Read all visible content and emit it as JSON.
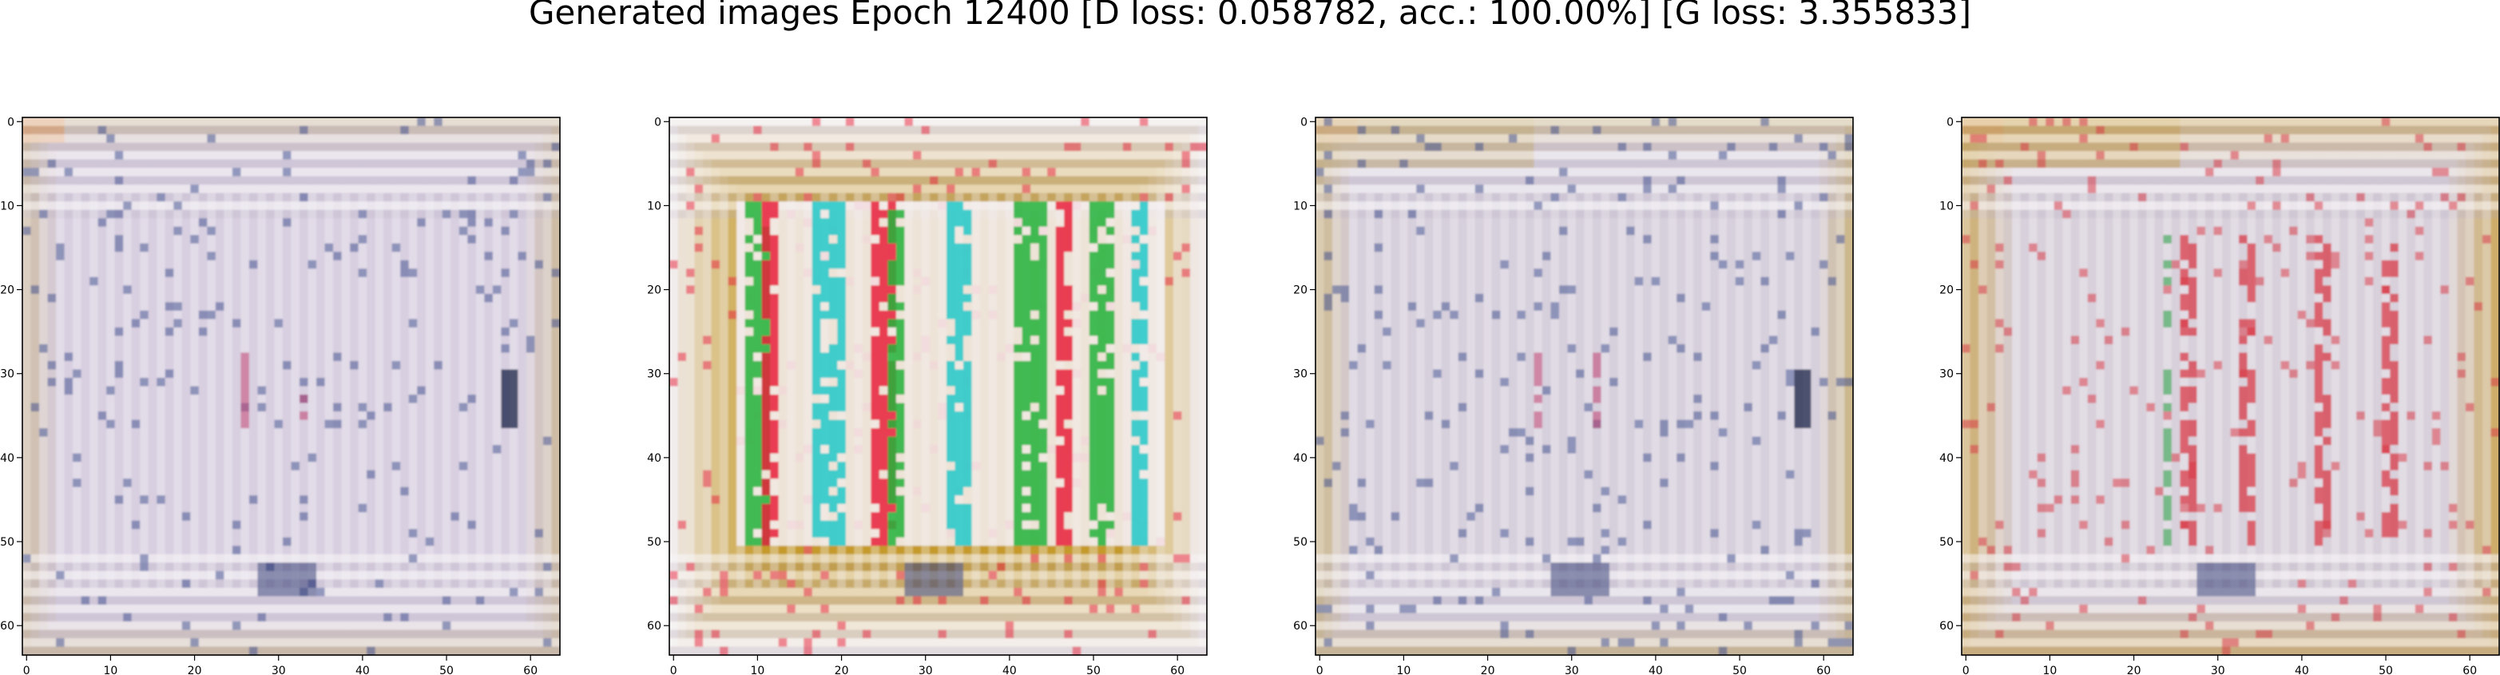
{
  "figure": {
    "title": "Generated images Epoch 12400 [D loss: 0.058782, acc.: 100.00%] [G loss: 3.355833]"
  },
  "axes_ticks": {
    "x": [
      "0",
      "10",
      "20",
      "30",
      "40",
      "50",
      "60"
    ],
    "y": [
      "0",
      "10",
      "20",
      "30",
      "40",
      "50",
      "60"
    ]
  },
  "panels": [
    {
      "image_description": "generated sample: pale lavender-white field with horizontal stripes near top and bottom edges, faint vertical speckled pattern, light orange tint top-left",
      "palette": [
        "#d8cfe0",
        "#c9b48a",
        "#3a4a8c",
        "#c04070"
      ]
    },
    {
      "image_description": "generated sample: mustard-yellow border around a white center with vivid red, green and cyan vertical streaks",
      "palette": [
        "#c59a2a",
        "#f2eef2",
        "#e8203a",
        "#23b23a",
        "#20c8c8"
      ]
    },
    {
      "image_description": "generated sample: near-duplicate of panel 1 with a stronger yellow tint along the top band",
      "palette": [
        "#d6cfdc",
        "#c8ae6a",
        "#3a4a8c",
        "#c04070"
      ]
    },
    {
      "image_description": "generated sample: pale field with orange-yellow frame and several red vertical streaks in the middle",
      "palette": [
        "#d8d0da",
        "#c99e3c",
        "#d8303e",
        "#2fa24a"
      ]
    }
  ]
}
